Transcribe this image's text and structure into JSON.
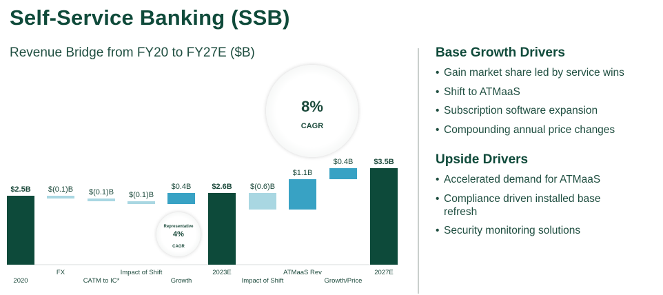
{
  "page": {
    "title": "Self-Service Banking (SSB)",
    "subtitle": "Revenue Bridge from FY20 to FY27E ($B)"
  },
  "colors": {
    "total": "#0d4a3a",
    "light": "#a9d7e2",
    "mid": "#38a2c4",
    "text": "#1d4a3c"
  },
  "cagr_main": {
    "value": "8%",
    "label": "CAGR"
  },
  "cagr_rep": {
    "label_top": "Representative",
    "value": "4%",
    "label": "CAGR"
  },
  "chart_data": {
    "type": "waterfall",
    "title": "Revenue Bridge from FY20 to FY27E ($B)",
    "unit": "$B",
    "steps": [
      {
        "category": "2020",
        "value": 2.5,
        "kind": "total",
        "label": "$2.5B"
      },
      {
        "category": "FX",
        "value": -0.1,
        "kind": "light",
        "label": "$(0.1)B"
      },
      {
        "category": "CATM to IC*",
        "value": -0.1,
        "kind": "light",
        "label": "$(0.1)B"
      },
      {
        "category": "Impact of Shift",
        "value": -0.1,
        "kind": "light",
        "label": "$(0.1)B"
      },
      {
        "category": "Growth",
        "value": 0.4,
        "kind": "mid",
        "label": "$0.4B"
      },
      {
        "category": "2023E",
        "value": 2.6,
        "kind": "total",
        "label": "$2.6B"
      },
      {
        "category": "Impact of Shift",
        "value": -0.6,
        "kind": "light",
        "label": "$(0.6)B"
      },
      {
        "category": "ATMaaS Rev",
        "value": 1.1,
        "kind": "mid",
        "label": "$1.1B"
      },
      {
        "category": "Growth/Price",
        "value": 0.4,
        "kind": "mid",
        "label": "$0.4B"
      },
      {
        "category": "2027E",
        "value": 3.5,
        "kind": "total",
        "label": "$3.5B"
      }
    ]
  },
  "base_drivers": {
    "heading": "Base Growth Drivers",
    "items": [
      "Gain market share led by service wins",
      "Shift to ATMaaS",
      "Subscription software expansion",
      "Compounding annual price changes"
    ]
  },
  "upside_drivers": {
    "heading": "Upside Drivers",
    "items": [
      "Accelerated demand for ATMaaS",
      "Compliance driven installed base refresh",
      "Security monitoring solutions"
    ]
  }
}
